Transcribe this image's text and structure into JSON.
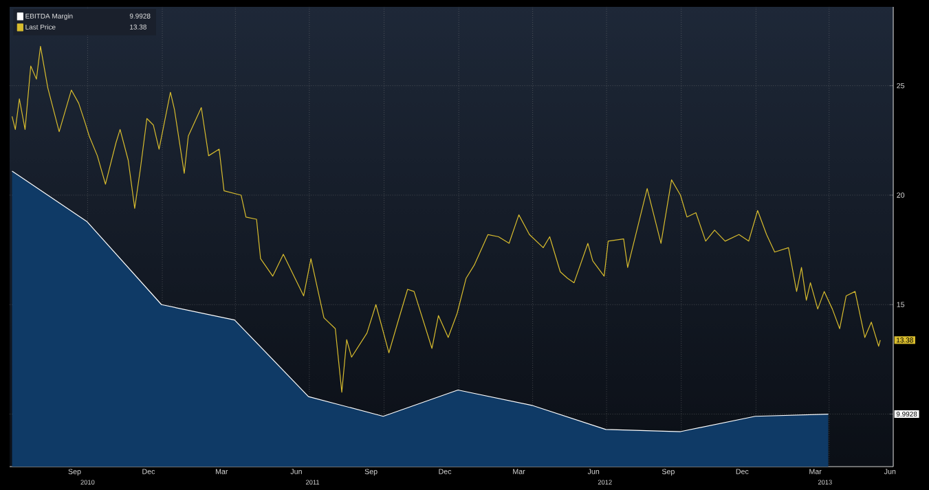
{
  "chart_data": {
    "type": "line",
    "xlim": [
      "2010-06-27",
      "2013-06-19"
    ],
    "ylim": [
      7.6,
      28.6
    ],
    "yticks": [
      {
        "value": 10,
        "label": null
      },
      15,
      20,
      25
    ],
    "xticks": [
      {
        "value": "2010-09-15",
        "label": "Sep"
      },
      {
        "value": "2010-12-15",
        "label": "Dec"
      },
      {
        "value": "2011-03-15",
        "label": "Mar"
      },
      {
        "value": "2011-06-15",
        "label": "Jun"
      },
      {
        "value": "2011-09-15",
        "label": "Sep"
      },
      {
        "value": "2011-12-15",
        "label": "Dec"
      },
      {
        "value": "2012-03-15",
        "label": "Mar"
      },
      {
        "value": "2012-06-15",
        "label": "Jun"
      },
      {
        "value": "2012-09-15",
        "label": "Sep"
      },
      {
        "value": "2012-12-15",
        "label": "Dec"
      },
      {
        "value": "2013-03-15",
        "label": "Mar"
      },
      {
        "value": "2013-06-15",
        "label": "Jun"
      },
      {
        "value": "2010-10-01",
        "label": null
      },
      {
        "value": "2011-01-01",
        "label": null
      },
      {
        "value": "2011-04-01",
        "label": null
      },
      {
        "value": "2011-07-01",
        "label": null
      },
      {
        "value": "2011-10-01",
        "label": null
      },
      {
        "value": "2012-01-01",
        "label": null
      },
      {
        "value": "2012-04-01",
        "label": null
      },
      {
        "value": "2012-07-01",
        "label": null
      },
      {
        "value": "2012-10-01",
        "label": null
      },
      {
        "value": "2013-01-01",
        "label": null
      },
      {
        "value": "2013-04-01",
        "label": null
      }
    ],
    "x2lim": [
      "2010-06-27",
      "2013-06-19"
    ],
    "x2ticks": [
      {
        "value": "2010-10-01",
        "label": "2010"
      },
      {
        "value": "2011-07-05",
        "label": "2011"
      },
      {
        "value": "2012-06-29",
        "label": "2012"
      },
      {
        "value": "2013-03-27",
        "label": "2013"
      }
    ],
    "grid": true,
    "legend": "top left",
    "annotations": [
      "9.9928",
      "13.38"
    ],
    "series": [
      {
        "name": "EBITDA Margin",
        "type": "area",
        "color": "#ffffff",
        "x": [
          "2010-06-30",
          "2010-09-30",
          "2010-12-31",
          "2011-03-31",
          "2011-06-30",
          "2011-09-30",
          "2011-12-31",
          "2012-03-31",
          "2012-06-30",
          "2012-09-30",
          "2012-12-31",
          "2013-03-31"
        ],
        "values": [
          21.1,
          18.8,
          15.0,
          14.3,
          10.8,
          9.9,
          11.1,
          10.4,
          9.3,
          9.2,
          9.9,
          10.0
        ]
      },
      {
        "name": "Last Price",
        "color": "#d9bd2e",
        "x": [
          "2010-06-30",
          "2010-07-04",
          "2010-07-09",
          "2010-07-16",
          "2010-07-23",
          "2010-07-30",
          "2010-08-04",
          "2010-08-13",
          "2010-08-27",
          "2010-09-11",
          "2010-09-20",
          "2010-09-28",
          "2010-10-03",
          "2010-10-13",
          "2010-10-23",
          "2010-11-05",
          "2010-11-10",
          "2010-11-20",
          "2010-11-28",
          "2010-12-05",
          "2010-12-13",
          "2010-12-21",
          "2010-12-28",
          "2011-01-11",
          "2011-01-16",
          "2011-01-28",
          "2011-02-02",
          "2011-02-18",
          "2011-02-27",
          "2011-03-12",
          "2011-03-18",
          "2011-04-08",
          "2011-04-14",
          "2011-04-27",
          "2011-05-02",
          "2011-05-17",
          "2011-05-30",
          "2011-06-24",
          "2011-07-03",
          "2011-07-19",
          "2011-08-02",
          "2011-08-10",
          "2011-08-16",
          "2011-08-22",
          "2011-09-10",
          "2011-09-21",
          "2011-10-07",
          "2011-10-18",
          "2011-10-30",
          "2011-11-07",
          "2011-11-29",
          "2011-12-07",
          "2011-12-19",
          "2011-12-30",
          "2012-01-10",
          "2012-01-20",
          "2012-02-06",
          "2012-02-19",
          "2012-03-03",
          "2012-03-15",
          "2012-03-28",
          "2012-04-14",
          "2012-04-22",
          "2012-05-05",
          "2012-05-14",
          "2012-05-22",
          "2012-06-08",
          "2012-06-14",
          "2012-06-28",
          "2012-07-03",
          "2012-07-22",
          "2012-07-27",
          "2012-08-20",
          "2012-09-06",
          "2012-09-19",
          "2012-09-30",
          "2012-10-08",
          "2012-10-19",
          "2012-10-31",
          "2012-11-11",
          "2012-11-24",
          "2012-12-11",
          "2012-12-23",
          "2013-01-03",
          "2013-01-14",
          "2013-01-24",
          "2013-02-10",
          "2013-02-20",
          "2013-02-26",
          "2013-03-04",
          "2013-03-09",
          "2013-03-18",
          "2013-03-26",
          "2013-04-05",
          "2013-04-14",
          "2013-04-22",
          "2013-05-03",
          "2013-05-15",
          "2013-05-23",
          "2013-06-01",
          "2013-06-03"
        ],
        "values": [
          23.6,
          23.0,
          24.4,
          23.0,
          25.9,
          25.3,
          26.8,
          24.9,
          22.9,
          24.8,
          24.2,
          23.3,
          22.7,
          21.8,
          20.5,
          22.4,
          23.0,
          21.6,
          19.4,
          21.2,
          23.5,
          23.2,
          22.1,
          24.7,
          23.9,
          21.0,
          22.7,
          24.0,
          21.8,
          22.1,
          20.2,
          20.0,
          19.0,
          18.9,
          17.1,
          16.3,
          17.3,
          15.4,
          17.1,
          14.4,
          13.9,
          11.0,
          13.4,
          12.6,
          13.7,
          15.0,
          12.8,
          14.2,
          15.7,
          15.6,
          13.0,
          14.5,
          13.5,
          14.6,
          16.2,
          16.8,
          18.2,
          18.1,
          17.8,
          19.1,
          18.2,
          17.6,
          18.1,
          16.5,
          16.2,
          16.0,
          17.8,
          17.0,
          16.3,
          17.9,
          18.0,
          16.7,
          20.3,
          17.8,
          20.7,
          20.0,
          19.0,
          19.2,
          17.9,
          18.4,
          17.9,
          18.2,
          17.9,
          19.3,
          18.2,
          17.4,
          17.6,
          15.6,
          16.7,
          15.2,
          16.0,
          14.8,
          15.6,
          14.8,
          13.9,
          15.4,
          15.6,
          13.5,
          14.2,
          13.1,
          13.38
        ]
      }
    ]
  }
}
